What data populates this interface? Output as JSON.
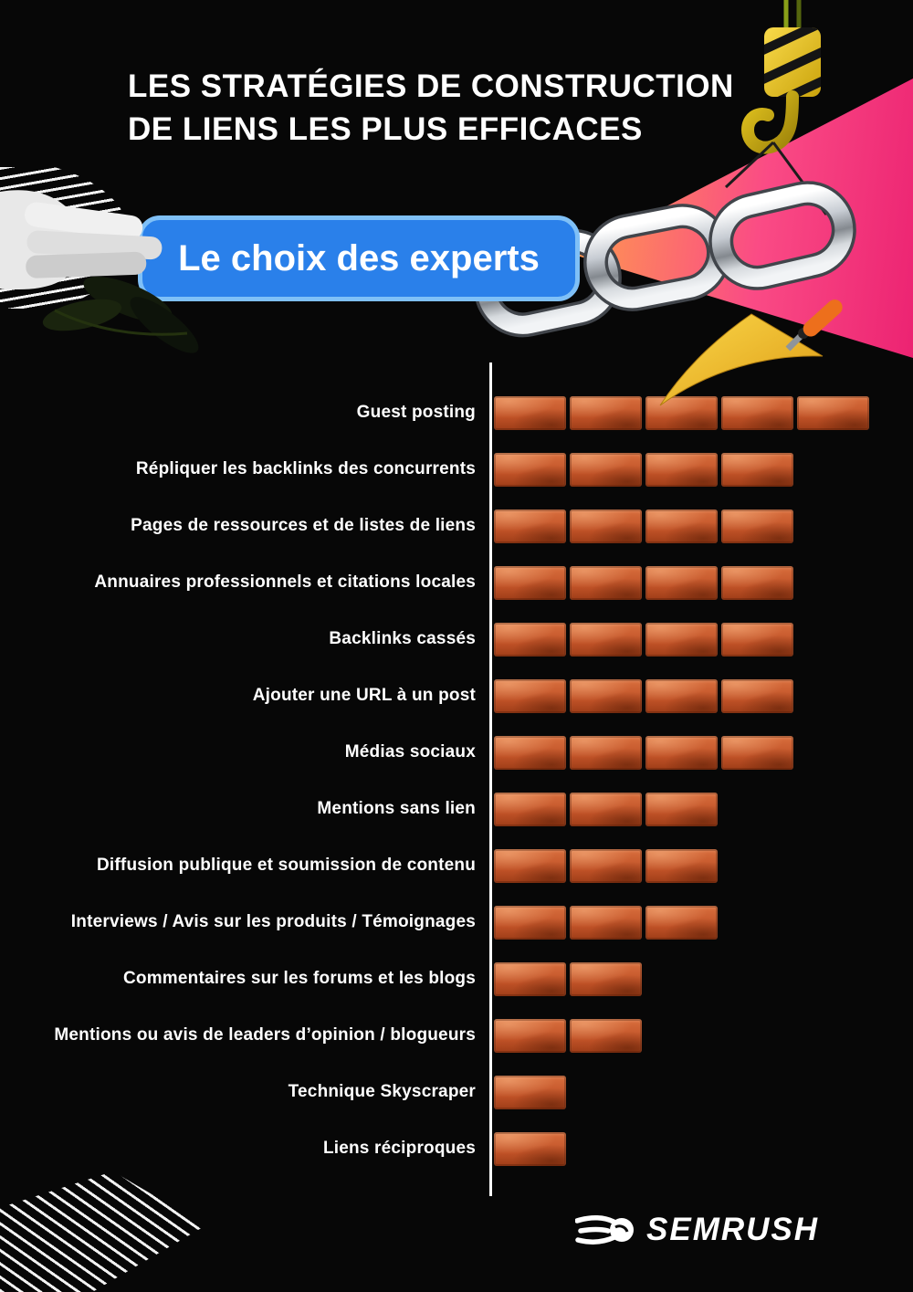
{
  "title": {
    "line1": "LES STRATÉGIES DE CONSTRUCTION",
    "line2": "DE LIENS LES PLUS EFFICACES"
  },
  "badge": {
    "label": "Le choix des experts"
  },
  "chart_data": {
    "type": "bar",
    "orientation": "horizontal",
    "title": "Les stratégies de construction de liens les plus efficaces — Le choix des experts",
    "unit": "bricks (relative effectiveness, 1–5)",
    "categories": [
      "Guest posting",
      "Répliquer les backlinks des concurrents",
      "Pages de ressources et de listes de liens",
      "Annuaires professionnels et citations locales",
      "Backlinks cassés",
      "Ajouter une URL à un post",
      "Médias sociaux",
      "Mentions sans lien",
      "Diffusion publique et soumission de contenu",
      "Interviews / Avis sur les produits / Témoignages",
      "Commentaires sur les forums et les blogs",
      "Mentions ou avis de leaders d’opinion / blogueurs",
      "Technique Skyscraper",
      "Liens réciproques"
    ],
    "values": [
      5,
      4,
      4,
      4,
      4,
      4,
      4,
      3,
      3,
      3,
      2,
      2,
      1,
      1
    ],
    "xlim": [
      0,
      5
    ],
    "grid": false,
    "legend": "none",
    "bar_color": "#c05227",
    "axis_line_color": "#ffffff"
  },
  "footer": {
    "logo_text": "SEMRUSH"
  },
  "colors": {
    "background": "#070707",
    "badge_blue": "#2a80ea",
    "badge_border": "#7fc0f7",
    "beam_gradient": [
      "#ffa14a",
      "#fa4b85",
      "#ec2372"
    ],
    "brick": "#c05227",
    "crane_yellow": "#e8c119",
    "chain_silver": "#c9ced4"
  },
  "decorations": [
    "hand-holding-badge",
    "leaves",
    "striped-corner-top-left",
    "striped-corner-bottom-left",
    "pink-light-beam",
    "crane-hook",
    "chain-links",
    "trowel"
  ]
}
